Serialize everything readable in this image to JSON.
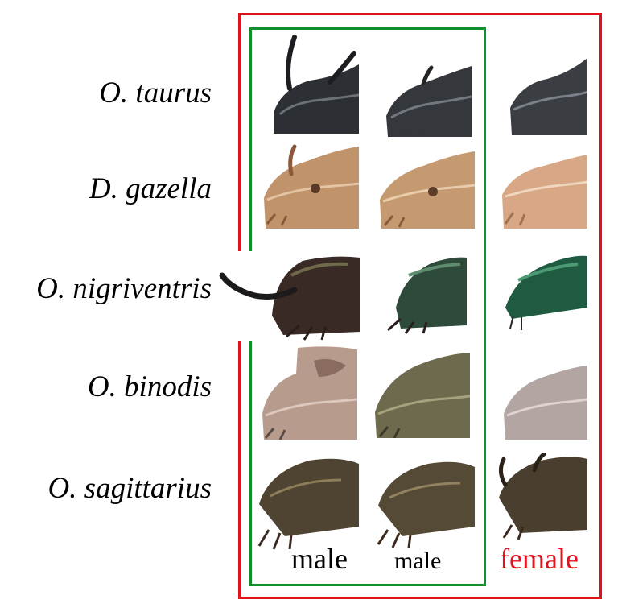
{
  "species": [
    {
      "label": "O. taurus"
    },
    {
      "label": "D. gazella"
    },
    {
      "label": "O. nigriventris"
    },
    {
      "label": "O. binodis"
    },
    {
      "label": "O. sagittarius"
    }
  ],
  "columns": [
    {
      "label": "male"
    },
    {
      "label": "male"
    },
    {
      "label": "female"
    }
  ],
  "colors": {
    "female_frame": "#e0121c",
    "male_frame": "#11902a",
    "female_text": "#e0121c"
  },
  "icons": {
    "specimen": "beetle-head-photo"
  }
}
